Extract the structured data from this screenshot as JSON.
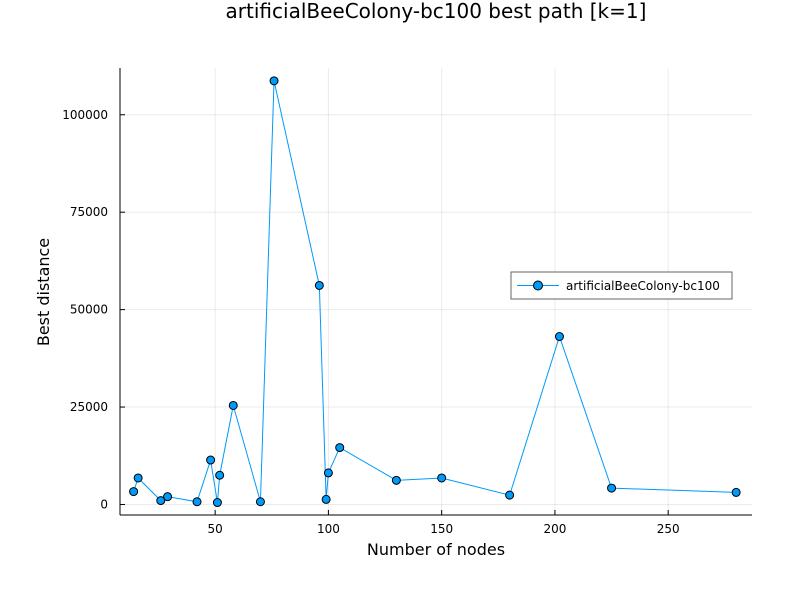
{
  "chart_data": {
    "type": "line",
    "title": "artificialBeeColony-bc100 best path [k=1]",
    "xlabel": "Number of nodes",
    "ylabel": "Best distance",
    "xlim": [
      8,
      287
    ],
    "ylim": [
      -2700,
      112000
    ],
    "xticks": [
      50,
      100,
      150,
      200,
      250
    ],
    "yticks": [
      0,
      25000,
      50000,
      75000,
      100000
    ],
    "grid": true,
    "legend_position": "right",
    "series": [
      {
        "name": "artificialBeeColony-bc100",
        "color": "#009AFA",
        "marker": "circle",
        "x": [
          14,
          16,
          26,
          29,
          42,
          48,
          51,
          52,
          58,
          70,
          76,
          96,
          99,
          100,
          105,
          130,
          150,
          180,
          202,
          225,
          280
        ],
        "y": [
          3300,
          6800,
          1000,
          2000,
          700,
          11400,
          500,
          7500,
          25400,
          700,
          108700,
          56200,
          1300,
          8100,
          14600,
          6200,
          6800,
          2400,
          43100,
          4200,
          3100
        ]
      }
    ]
  }
}
